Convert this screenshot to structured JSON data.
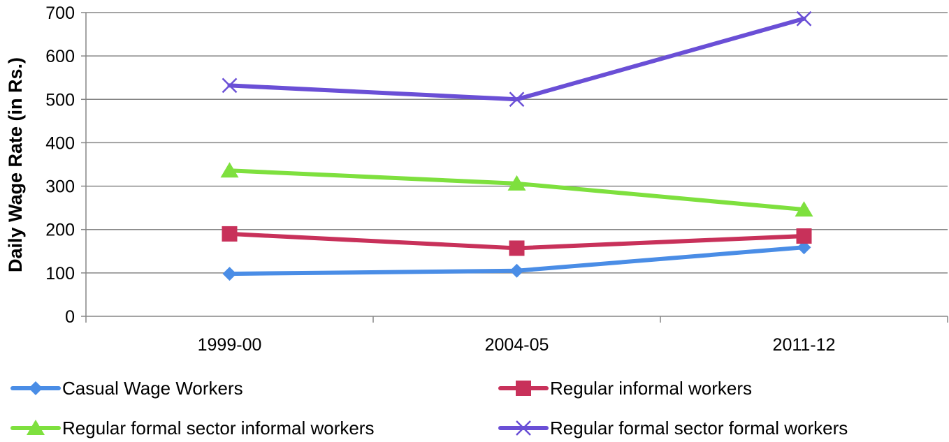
{
  "chart_data": {
    "type": "line",
    "title": "",
    "xlabel": "",
    "ylabel": "Daily Wage Rate (in Rs.)",
    "categories": [
      "1999-00",
      "2004-05",
      "2011-12"
    ],
    "ylim": [
      0,
      700
    ],
    "yticks": [
      0,
      100,
      200,
      300,
      400,
      500,
      600,
      700
    ],
    "ytick_labels": [
      "0",
      "100",
      "200",
      "300",
      "400",
      "500",
      "600",
      "700"
    ],
    "grid": true,
    "legend_position": "bottom",
    "series": [
      {
        "name": "Casual Wage Workers",
        "color": "#4a8de6",
        "marker": "diamond",
        "values": [
          98,
          105,
          159
        ]
      },
      {
        "name": "Regular informal workers",
        "color": "#c8315a",
        "marker": "square",
        "values": [
          190,
          157,
          185
        ]
      },
      {
        "name": "Regular formal sector informal workers",
        "color": "#7ee03e",
        "marker": "triangle",
        "values": [
          336,
          306,
          246
        ]
      },
      {
        "name": "Regular formal sector formal workers",
        "color": "#6a4fd6",
        "marker": "x",
        "values": [
          532,
          500,
          686
        ]
      }
    ]
  }
}
